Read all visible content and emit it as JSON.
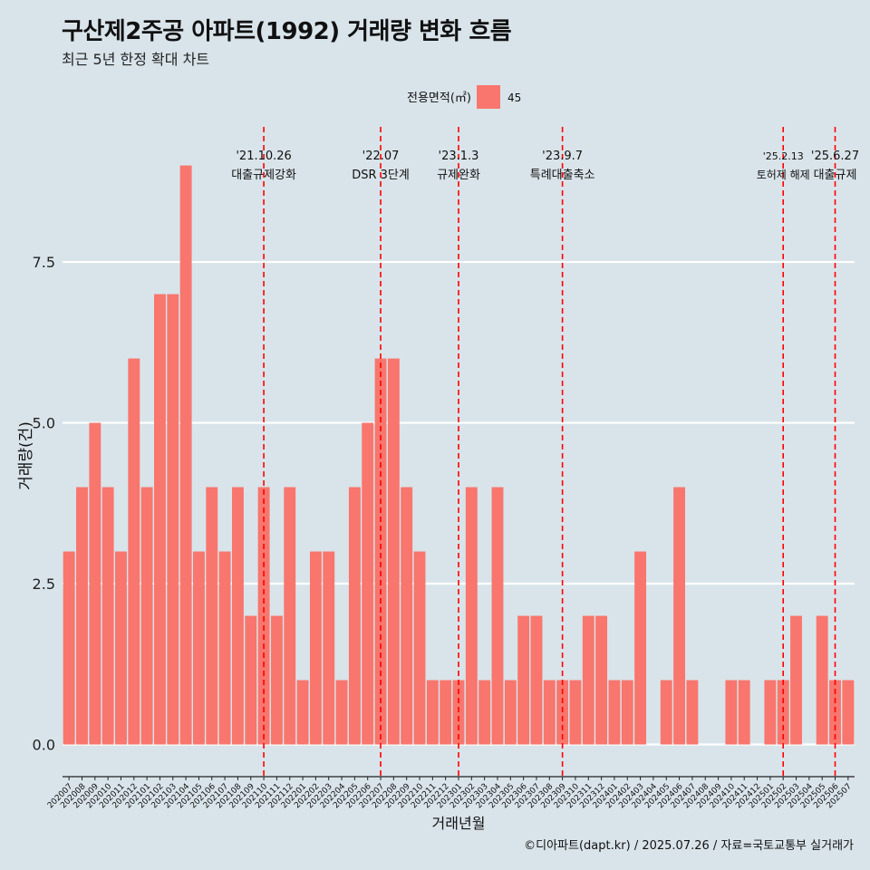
{
  "title": "구산제2주공 아파트(1992) 거래량 변화 흐름",
  "subtitle": "최근 5년 한정 확대 차트",
  "caption": "©디아파트(dapt.kr) / 2025.07.26 / 자료=국토교통부 실거래가",
  "colors": {
    "background": "#d9e4ea",
    "bar": "#f8766d",
    "gridline": "#ffffff",
    "event_line": "#ff0000"
  },
  "chart_data": {
    "type": "bar",
    "xlabel": "거래년월",
    "ylabel": "거래량(건)",
    "ylim": [
      -0.5,
      9.6
    ],
    "y_ticks": [
      0.0,
      2.5,
      5.0,
      7.5
    ],
    "y_tick_labels": [
      "0.0",
      "2.5",
      "5.0",
      "7.5"
    ],
    "grid": true,
    "legend": {
      "title": "전용면적(㎡)",
      "position": "top",
      "entries": [
        "45"
      ]
    },
    "categories": [
      "202007",
      "202008",
      "202009",
      "202010",
      "202011",
      "202012",
      "202101",
      "202102",
      "202103",
      "202104",
      "202105",
      "202106",
      "202107",
      "202108",
      "202109",
      "202110",
      "202111",
      "202112",
      "202201",
      "202202",
      "202203",
      "202204",
      "202205",
      "202206",
      "202207",
      "202208",
      "202209",
      "202210",
      "202211",
      "202212",
      "202301",
      "202302",
      "202303",
      "202304",
      "202305",
      "202306",
      "202307",
      "202308",
      "202309",
      "202310",
      "202311",
      "202312",
      "202401",
      "202402",
      "202403",
      "202404",
      "202405",
      "202406",
      "202407",
      "202408",
      "202409",
      "202410",
      "202411",
      "202412",
      "202501",
      "202502",
      "202503",
      "202504",
      "202505",
      "202506",
      "202507"
    ],
    "series": [
      {
        "name": "45",
        "values": [
          3,
          4,
          5,
          4,
          3,
          6,
          4,
          7,
          7,
          9,
          3,
          4,
          3,
          4,
          2,
          4,
          2,
          4,
          1,
          3,
          3,
          1,
          4,
          5,
          6,
          6,
          4,
          3,
          1,
          1,
          1,
          4,
          1,
          4,
          1,
          2,
          2,
          1,
          1,
          1,
          2,
          2,
          1,
          1,
          3,
          0,
          1,
          4,
          1,
          0,
          0,
          1,
          1,
          0,
          1,
          1,
          2,
          0,
          2,
          1,
          1
        ]
      }
    ],
    "events": [
      {
        "date": "'21.10.26",
        "label": "대출규제강화",
        "x_month": "202110"
      },
      {
        "date": "'22.07",
        "label": "DSR 3단계",
        "x_month": "202207"
      },
      {
        "date": "'23.1.3",
        "label": "규제완화",
        "x_month": "202301"
      },
      {
        "date": "'23.9.7",
        "label": "특례대출축소",
        "x_month": "202309"
      },
      {
        "date": "'25.2.13",
        "label": "토허제 해제",
        "x_month": "202502"
      },
      {
        "date": "'25.6.27",
        "label": "대출규제",
        "x_month": "202506"
      }
    ]
  }
}
